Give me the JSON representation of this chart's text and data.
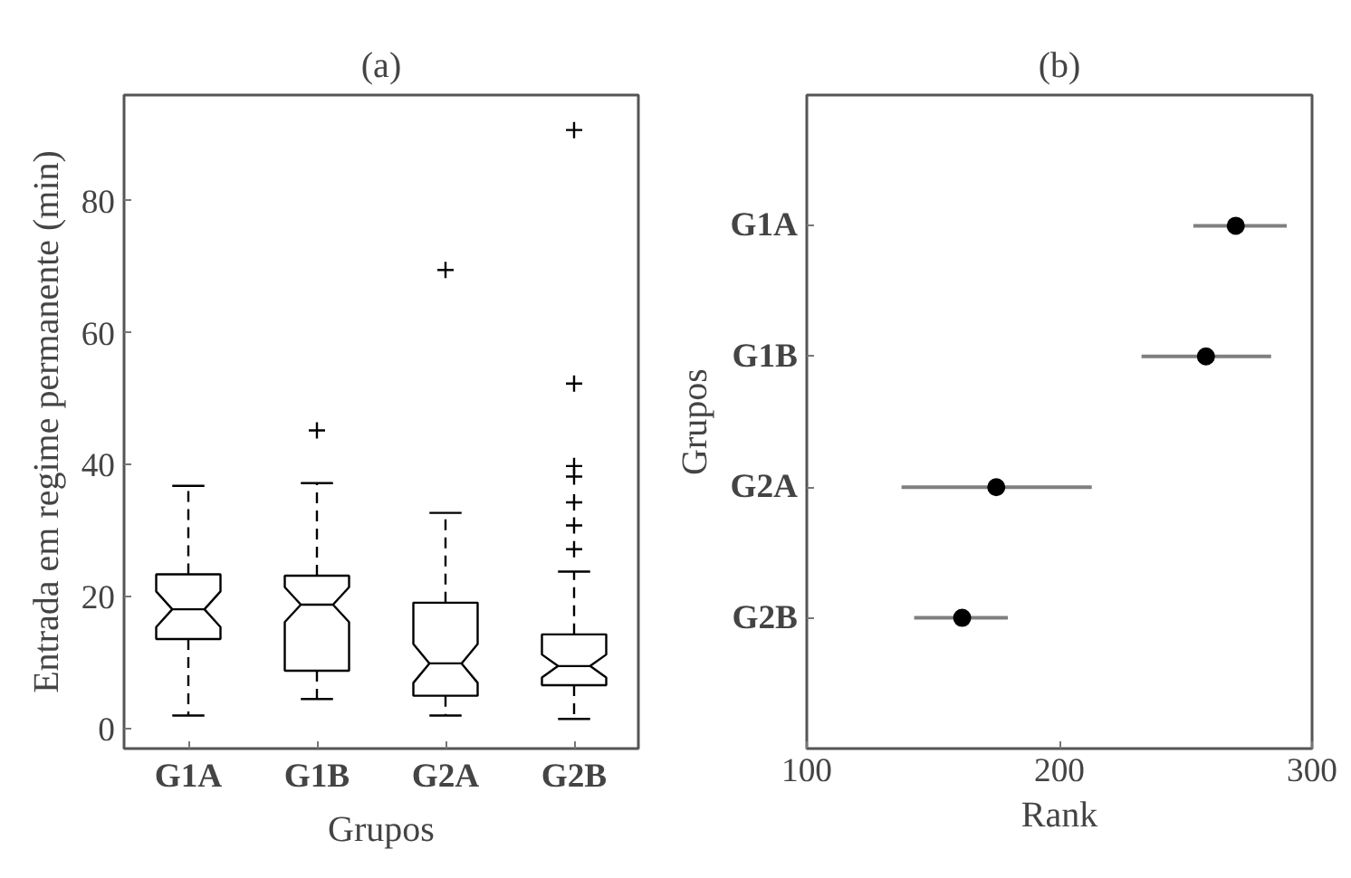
{
  "chart_data": [
    {
      "type": "box",
      "title": "(a)",
      "xlabel": "Grupos",
      "ylabel": "Entrada em regime permanente (min)",
      "categories": [
        "G1A",
        "G1B",
        "G2A",
        "G2B"
      ],
      "ylim": [
        -3,
        96
      ],
      "yticks": [
        0,
        20,
        40,
        60,
        80
      ],
      "grid": false,
      "marker": "cross",
      "color": "#000000",
      "boxes": [
        {
          "low": 2.0,
          "q1": 13.6,
          "median": 18.1,
          "q3": 23.4,
          "high": 36.8
        },
        {
          "low": 4.5,
          "q1": 8.8,
          "median": 18.8,
          "q3": 23.2,
          "high": 37.2,
          "outliers": [
            45.2
          ]
        },
        {
          "low": 2.0,
          "q1": 5.0,
          "median": 9.9,
          "q3": 19.1,
          "high": 32.7,
          "outliers": [
            69.5
          ]
        },
        {
          "low": 1.5,
          "q1": 6.6,
          "median": 9.5,
          "q3": 14.3,
          "high": 23.8,
          "outliers": [
            27.2,
            30.8,
            34.3,
            38.2,
            39.8,
            52.3,
            90.7
          ]
        }
      ]
    },
    {
      "type": "scatter",
      "title": "(b)",
      "xlabel": "Rank",
      "ylabel": "Grupos",
      "orientation": "horizontal",
      "categories": [
        "G1A",
        "G1B",
        "G2A",
        "G2B"
      ],
      "xlim": [
        100,
        300
      ],
      "xticks": [
        100,
        200,
        300
      ],
      "grid": false,
      "marker": "circle",
      "color": "#000000",
      "values": [
        269.8,
        258,
        175,
        161.5
      ],
      "errors": [
        [
          253,
          290
        ],
        [
          232.5,
          283.8
        ],
        [
          137.5,
          212.8
        ],
        [
          142.5,
          179.6
        ]
      ]
    }
  ]
}
